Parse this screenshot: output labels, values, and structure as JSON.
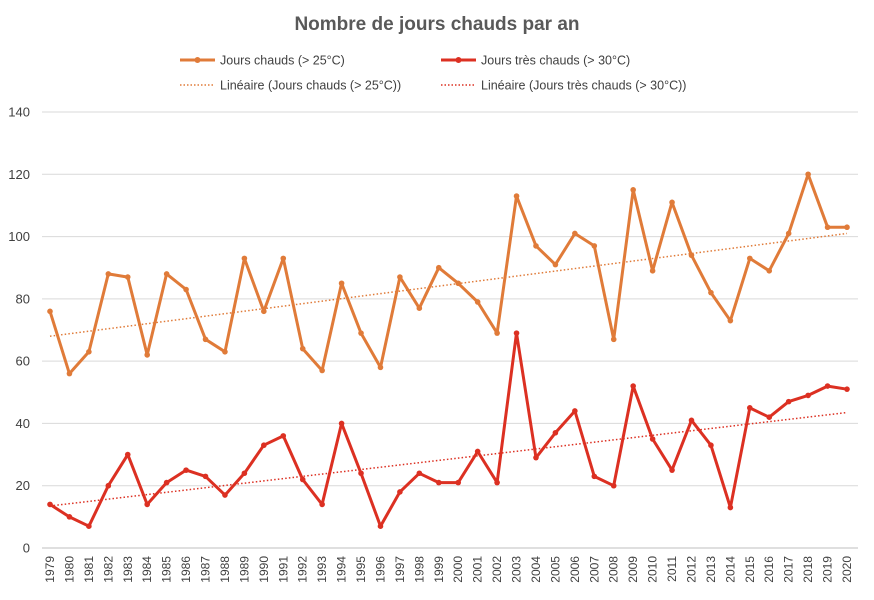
{
  "chart_data": {
    "type": "line",
    "title": "Nombre de jours chauds par an",
    "xlabel": "",
    "ylabel": "",
    "ylim": [
      0,
      140
    ],
    "yticks": [
      0,
      20,
      40,
      60,
      80,
      100,
      120,
      140
    ],
    "grid": true,
    "legend_position": "top",
    "categories": [
      "1979",
      "1980",
      "1981",
      "1982",
      "1983",
      "1984",
      "1985",
      "1986",
      "1987",
      "1988",
      "1989",
      "1990",
      "1991",
      "1992",
      "1993",
      "1994",
      "1995",
      "1996",
      "1997",
      "1998",
      "1999",
      "2000",
      "2001",
      "2002",
      "2003",
      "2004",
      "2005",
      "2006",
      "2007",
      "2008",
      "2009",
      "2010",
      "2011",
      "2012",
      "2013",
      "2014",
      "2015",
      "2016",
      "2017",
      "2018",
      "2019",
      "2020"
    ],
    "series": [
      {
        "name": "Jours chauds (> 25°C)",
        "color": "#E07B39",
        "values": [
          76,
          56,
          63,
          88,
          87,
          62,
          88,
          83,
          67,
          63,
          93,
          76,
          93,
          64,
          57,
          85,
          69,
          58,
          87,
          77,
          90,
          85,
          79,
          69,
          113,
          97,
          91,
          101,
          97,
          67,
          115,
          89,
          111,
          94,
          82,
          73,
          93,
          89,
          101,
          120,
          103,
          103
        ]
      },
      {
        "name": "Jours très chauds (> 30°C)",
        "color": "#DC3022",
        "values": [
          14,
          10,
          7,
          20,
          30,
          14,
          21,
          25,
          23,
          17,
          24,
          33,
          36,
          22,
          14,
          40,
          24,
          7,
          18,
          24,
          21,
          21,
          31,
          21,
          69,
          29,
          37,
          44,
          23,
          20,
          52,
          35,
          25,
          41,
          33,
          13,
          45,
          42,
          47,
          49,
          52,
          51
        ]
      }
    ],
    "trendlines": [
      {
        "name": "Linéaire (Jours chauds (> 25°C))",
        "color": "#E07B39",
        "start": [
          1979,
          68
        ],
        "end": [
          2020,
          101
        ]
      },
      {
        "name": "Linéaire (Jours très chauds (> 30°C))",
        "color": "#DC3022",
        "start": [
          1979,
          13.5
        ],
        "end": [
          2020,
          43.5
        ]
      }
    ]
  }
}
